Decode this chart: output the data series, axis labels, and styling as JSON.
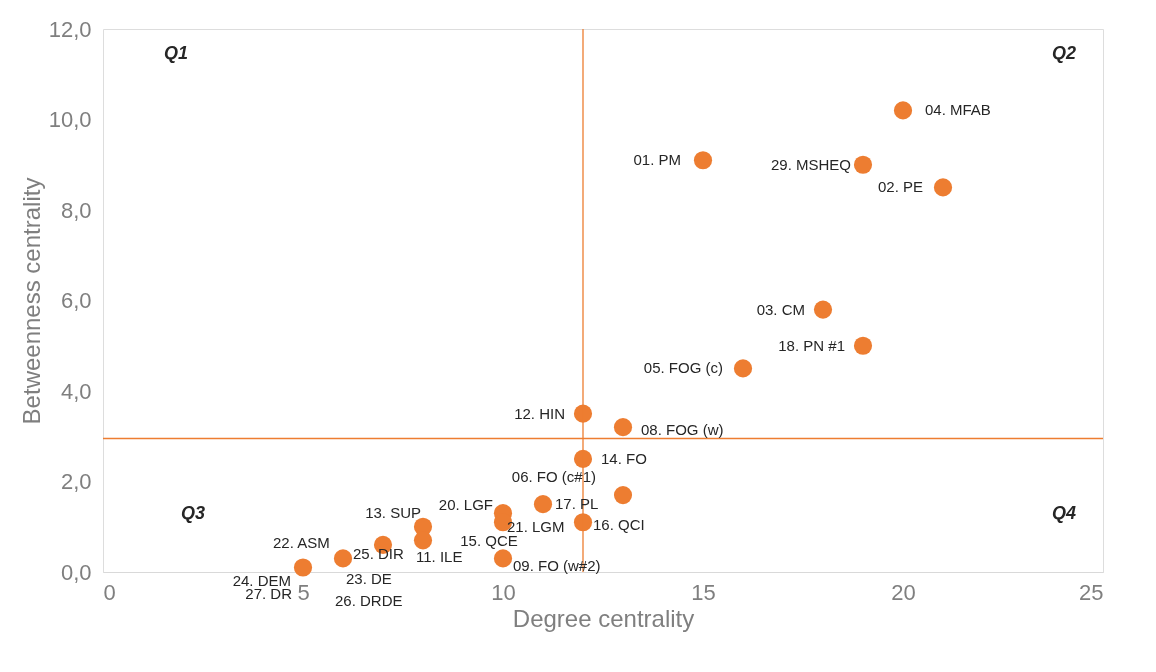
{
  "chart_data": {
    "type": "scatter",
    "xlabel": "Degree centrality",
    "ylabel": "Betweenness centrality",
    "x": [
      15,
      20,
      19,
      21,
      18,
      19,
      16,
      12,
      13,
      12,
      13,
      11,
      10,
      10,
      12,
      8,
      8,
      10,
      7,
      6,
      5
    ],
    "values": [
      9.1,
      10.2,
      9.0,
      8.5,
      5.8,
      5.0,
      4.5,
      3.5,
      3.2,
      2.5,
      1.7,
      1.5,
      1.3,
      1.1,
      1.1,
      1.0,
      0.7,
      0.3,
      0.6,
      0.3,
      0.1
    ],
    "color": "#ed7d31",
    "marker": "circle",
    "xlim": [
      0,
      25
    ],
    "xticks": [
      0,
      5,
      10,
      15,
      20,
      25
    ],
    "ylim": [
      0,
      12
    ],
    "yticks": [
      {
        "value": 0,
        "label": "0,0"
      },
      {
        "value": 2,
        "label": "2,0"
      },
      {
        "value": 4,
        "label": "4,0"
      },
      {
        "value": 6,
        "label": "6,0"
      },
      {
        "value": 8,
        "label": "8,0"
      },
      {
        "value": 10,
        "label": "10,0"
      },
      {
        "value": 12,
        "label": "12,0"
      }
    ],
    "grid": false,
    "ref_lines": [
      {
        "axis": "x",
        "value": 12,
        "color": "#ed7d31"
      },
      {
        "axis": "y",
        "value": 2.95,
        "color": "#ed7d31"
      }
    ],
    "annotations": [
      {
        "text": "01. PM",
        "x": 15,
        "y": 9.1
      },
      {
        "text": "04. MFAB",
        "x": 20,
        "y": 10.2
      },
      {
        "text": "29. MSHEQ",
        "x": 19,
        "y": 9.0
      },
      {
        "text": "02. PE",
        "x": 21,
        "y": 8.5
      },
      {
        "text": "03. CM",
        "x": 18,
        "y": 5.8
      },
      {
        "text": "18. PN #1",
        "x": 19,
        "y": 5.0
      },
      {
        "text": "05. FOG (c)",
        "x": 16,
        "y": 4.5
      },
      {
        "text": "12. HIN",
        "x": 12,
        "y": 3.5
      },
      {
        "text": "08. FOG (w)",
        "x": 13,
        "y": 3.2
      },
      {
        "text": "14. FO",
        "x": 12,
        "y": 2.5
      },
      {
        "text": "06. FO (c#1)",
        "x": 13,
        "y": 1.7
      },
      {
        "text": "17. PL",
        "x": 11,
        "y": 1.5
      },
      {
        "text": "20. LGF",
        "x": 10,
        "y": 1.3
      },
      {
        "text": "21. LGM",
        "x": 10,
        "y": 1.1
      },
      {
        "text": "16. QCI",
        "x": 12,
        "y": 1.1
      },
      {
        "text": "13. SUP",
        "x": 8,
        "y": 1.0
      },
      {
        "text": "11. ILE",
        "x": 8,
        "y": 0.7
      },
      {
        "text": "15. QCE",
        "x": 10,
        "y": 1.1
      },
      {
        "text": "09. FO (w#2)",
        "x": 10,
        "y": 0.3
      },
      {
        "text": "25. DIR",
        "x": 7,
        "y": 0.6
      },
      {
        "text": "23. DE",
        "x": 6,
        "y": 0.3
      },
      {
        "text": "26. DRDE",
        "x": 6,
        "y": 0.3
      },
      {
        "text": "22. ASM",
        "x": 5,
        "y": 0.1
      },
      {
        "text": "24. DEM",
        "x": 5,
        "y": 0.1
      },
      {
        "text": "27. DR",
        "x": 5,
        "y": 0.1
      },
      "Q1",
      "Q2",
      "Q3",
      "Q4"
    ]
  }
}
